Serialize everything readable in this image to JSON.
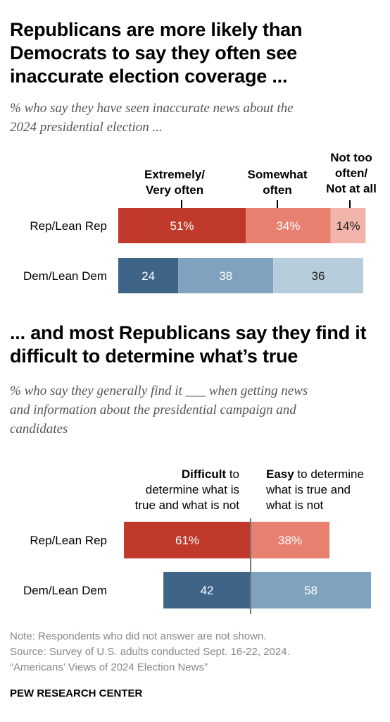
{
  "section1": {
    "title_lines": [
      "Republicans are more likely than",
      "Democrats to say they often see",
      "inaccurate election coverage ..."
    ],
    "subtitle_lines": [
      "% who say they have seen inaccurate news about the",
      "2024 presidential election ..."
    ],
    "headers": {
      "col1": [
        "Extremely/",
        "Very often"
      ],
      "col2": [
        "Somewhat",
        "often"
      ],
      "col3": [
        "Not too",
        "often/",
        "Not at all"
      ]
    }
  },
  "section2": {
    "title_lines": [
      "... and most Republicans say they find it",
      "difficult to determine what’s true"
    ],
    "subtitle_lines": [
      "% who say they generally find it ___ when getting news",
      "and information about the presidential campaign and",
      "candidates"
    ],
    "headers": {
      "left_bold": "Difficult",
      "left_rest": " to",
      "left_lines": [
        "determine what is",
        "true and what is not"
      ],
      "right_bold": "Easy",
      "right_rest": " to determine",
      "right_lines": [
        "what is true and",
        "what is not"
      ]
    }
  },
  "chart_data": [
    {
      "type": "bar",
      "stacked": true,
      "orientation": "horizontal",
      "categories": [
        "Rep/Lean Rep",
        "Dem/Lean Dem"
      ],
      "series": [
        {
          "name": "Extremely/Very often",
          "values": [
            51,
            24
          ],
          "labels": [
            "51%",
            "24"
          ]
        },
        {
          "name": "Somewhat often",
          "values": [
            34,
            38
          ],
          "labels": [
            "34%",
            "38"
          ]
        },
        {
          "name": "Not too often/Not at all",
          "values": [
            14,
            36
          ],
          "labels": [
            "14%",
            "36"
          ]
        }
      ],
      "colors": {
        "rep": [
          "#c0392b",
          "#e88070",
          "#f2b5aa"
        ],
        "dem": [
          "#3e6488",
          "#7fa3bf",
          "#b7cddc"
        ]
      }
    },
    {
      "type": "bar",
      "diverging": true,
      "orientation": "horizontal",
      "categories": [
        "Rep/Lean Rep",
        "Dem/Lean Dem"
      ],
      "series": [
        {
          "name": "Difficult",
          "values": [
            61,
            42
          ],
          "labels": [
            "61%",
            "42"
          ]
        },
        {
          "name": "Easy",
          "values": [
            38,
            58
          ],
          "labels": [
            "38%",
            "58"
          ]
        }
      ],
      "colors": {
        "rep": [
          "#c0392b",
          "#e88070"
        ],
        "dem": [
          "#3e6488",
          "#7fa3bf"
        ]
      }
    }
  ],
  "footer": {
    "note": "Note: Respondents who did not answer are not shown.",
    "source": "Source: Survey of U.S. adults conducted Sept. 16-22, 2024.",
    "report": "“Americans’ Views of 2024 Election News”",
    "brand": "PEW RESEARCH CENTER"
  }
}
